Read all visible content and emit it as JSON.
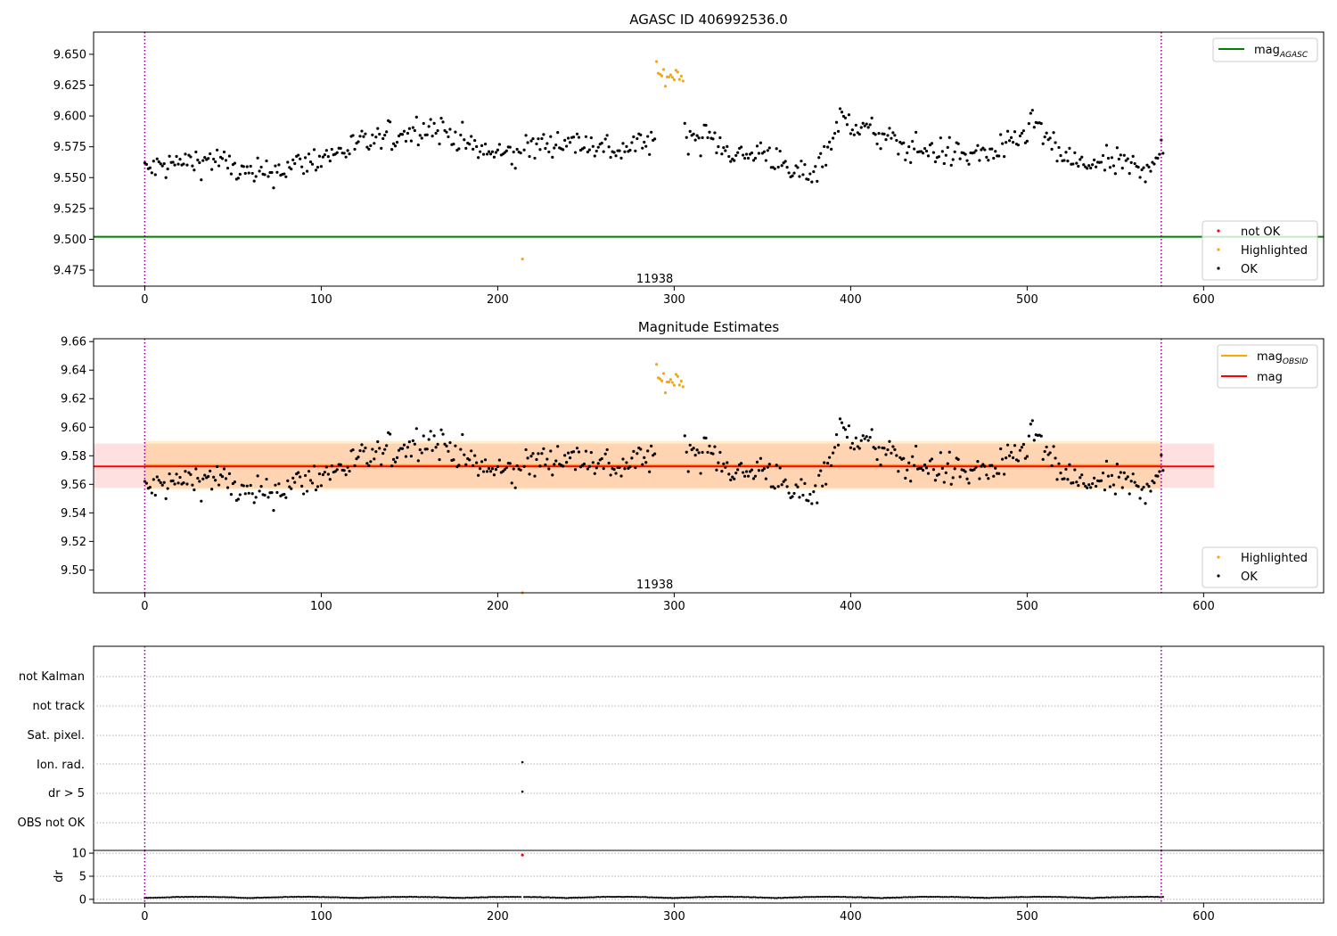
{
  "chart_data": [
    {
      "id": "agasc",
      "type": "scatter",
      "title": "AGASC ID 406992536.0",
      "xlim": [
        -29,
        668
      ],
      "ylim": [
        9.462,
        9.668
      ],
      "xticks": [
        0,
        100,
        200,
        300,
        400,
        500,
        600
      ],
      "yticks": [
        "9.475",
        "9.500",
        "9.525",
        "9.550",
        "9.575",
        "9.600",
        "9.625",
        "9.650"
      ],
      "vlines": [
        0,
        576
      ],
      "vline_color": "#800080",
      "hline": {
        "y": 9.502,
        "color": "#008000",
        "label": "mag",
        "label_sub": "AGASC"
      },
      "annotation": {
        "x": 289,
        "y": 9.465,
        "text": "11938"
      },
      "legend_status": [
        {
          "label": "not OK",
          "color": "#ff0000"
        },
        {
          "label": "Highlighted",
          "color": "#ffa500"
        },
        {
          "label": "OK",
          "color": "#000000"
        }
      ]
    },
    {
      "id": "estimates",
      "type": "scatter",
      "title": "Magnitude Estimates",
      "xlim": [
        -29,
        668
      ],
      "ylim": [
        9.484,
        9.662
      ],
      "xticks": [
        0,
        100,
        200,
        300,
        400,
        500,
        600
      ],
      "yticks": [
        "9.50",
        "9.52",
        "9.54",
        "9.56",
        "9.58",
        "9.60",
        "9.62",
        "9.64",
        "9.66"
      ],
      "vlines": [
        0,
        576
      ],
      "mag_obsid": {
        "y": 9.5735,
        "x0": 0,
        "x1": 576,
        "band": [
          9.5565,
          9.5905
        ],
        "color": "#ffa500",
        "label": "mag",
        "label_sub": "OBSID"
      },
      "mag": {
        "y": 9.5725,
        "x0": -29,
        "x1": 606,
        "band": [
          9.5575,
          9.5885
        ],
        "color": "#ff0000",
        "label": "mag"
      },
      "annotation": {
        "x": 289,
        "y": 9.487,
        "text": "11938"
      },
      "legend_status": [
        {
          "label": "Highlighted",
          "color": "#ffa500"
        },
        {
          "label": "OK",
          "color": "#000000"
        }
      ]
    },
    {
      "id": "flags",
      "type": "scatter",
      "xlim": [
        -29,
        668
      ],
      "categories": [
        "not Kalman",
        "not track",
        "Sat. pixel.",
        "Ion. rad.",
        "dr > 5",
        "OBS not OK"
      ],
      "points": [
        {
          "category": "Ion. rad.",
          "x": 214
        },
        {
          "category": "dr > 5",
          "x": 214
        }
      ],
      "vlines": [
        0,
        576
      ]
    },
    {
      "id": "dr",
      "type": "scatter",
      "ylabel": "dr",
      "xlim": [
        -29,
        668
      ],
      "ylim": [
        -0.8,
        10.6
      ],
      "yticks": [
        "0",
        "5",
        "10"
      ],
      "xticks": [
        0,
        100,
        200,
        300,
        400,
        500,
        600
      ],
      "outlier": {
        "x": 214,
        "y": 9.6,
        "color": "#ff0000"
      },
      "vlines": [
        0,
        576
      ]
    }
  ],
  "series_generation": {
    "n": 578,
    "mag_baseline": [
      [
        0,
        9.556
      ],
      [
        20,
        9.562
      ],
      [
        40,
        9.565
      ],
      [
        60,
        9.551
      ],
      [
        80,
        9.558
      ],
      [
        100,
        9.566
      ],
      [
        120,
        9.576
      ],
      [
        140,
        9.583
      ],
      [
        160,
        9.592
      ],
      [
        175,
        9.585
      ],
      [
        190,
        9.571
      ],
      [
        210,
        9.568
      ],
      [
        230,
        9.58
      ],
      [
        250,
        9.578
      ],
      [
        270,
        9.572
      ],
      [
        285,
        9.58
      ],
      [
        300,
        9.585
      ],
      [
        320,
        9.582
      ],
      [
        340,
        9.566
      ],
      [
        352,
        9.573
      ],
      [
        365,
        9.553
      ],
      [
        380,
        9.556
      ],
      [
        395,
        9.598
      ],
      [
        410,
        9.588
      ],
      [
        430,
        9.575
      ],
      [
        450,
        9.571
      ],
      [
        470,
        9.568
      ],
      [
        490,
        9.574
      ],
      [
        505,
        9.595
      ],
      [
        515,
        9.572
      ],
      [
        530,
        9.56
      ],
      [
        550,
        9.562
      ],
      [
        565,
        9.556
      ],
      [
        577,
        9.574
      ]
    ],
    "highlight_range": [
      290,
      305
    ],
    "highlight_mean": 9.633,
    "outlier": {
      "x": 214,
      "y": 9.484
    }
  }
}
